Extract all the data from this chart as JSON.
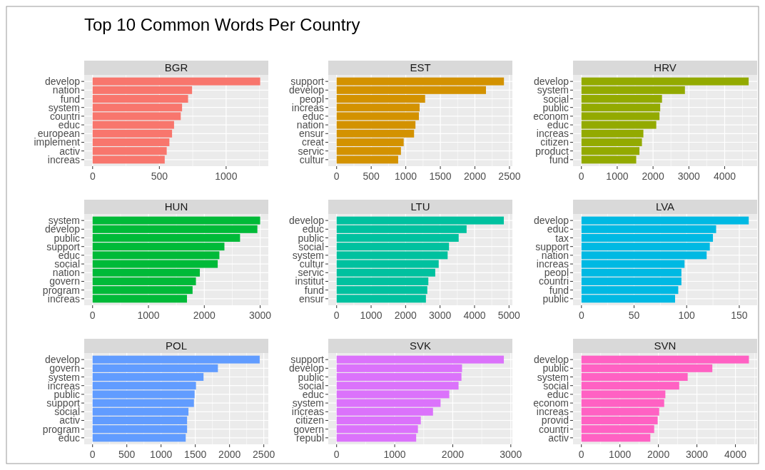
{
  "chart_data": [
    {
      "type": "other",
      "title": "Top 10 Common Words Per Country"
    },
    {
      "type": "bar",
      "orientation": "horizontal",
      "title": "BGR",
      "categories": [
        "develop",
        "nation",
        "fund",
        "system",
        "countri",
        "educ",
        "european",
        "implement",
        "activ",
        "increas"
      ],
      "values": [
        1255,
        745,
        715,
        670,
        660,
        610,
        595,
        575,
        555,
        540
      ],
      "color": "#f8766d",
      "xlim": [
        -63,
        1316
      ],
      "xticks": [
        0,
        500,
        1000
      ],
      "grid": true
    },
    {
      "type": "bar",
      "orientation": "horizontal",
      "title": "EST",
      "categories": [
        "support",
        "develop",
        "peopl",
        "increas",
        "educ",
        "nation",
        "ensur",
        "creat",
        "servic",
        "cultur"
      ],
      "values": [
        2420,
        2160,
        1280,
        1200,
        1190,
        1140,
        1120,
        970,
        930,
        890
      ],
      "color": "#d39200",
      "xlim": [
        -121,
        2542
      ],
      "xticks": [
        0,
        500,
        1000,
        1500,
        2000,
        2500
      ],
      "grid": true
    },
    {
      "type": "bar",
      "orientation": "horizontal",
      "title": "HRV",
      "categories": [
        "develop",
        "system",
        "social",
        "public",
        "econom",
        "educ",
        "increas",
        "citizen",
        "product",
        "fund"
      ],
      "values": [
        4670,
        2890,
        2250,
        2200,
        2180,
        2090,
        1730,
        1690,
        1620,
        1530
      ],
      "color": "#93aa00",
      "xlim": [
        -234,
        4907
      ],
      "xticks": [
        0,
        1000,
        2000,
        3000,
        4000
      ],
      "grid": true
    },
    {
      "type": "bar",
      "orientation": "horizontal",
      "title": "HUN",
      "categories": [
        "system",
        "develop",
        "public",
        "support",
        "educ",
        "social",
        "nation",
        "govern",
        "program",
        "increas"
      ],
      "values": [
        3000,
        2950,
        2640,
        2360,
        2270,
        2240,
        1920,
        1850,
        1790,
        1690
      ],
      "color": "#00ba38",
      "xlim": [
        -150,
        3146
      ],
      "xticks": [
        0,
        1000,
        2000,
        3000
      ],
      "grid": true
    },
    {
      "type": "bar",
      "orientation": "horizontal",
      "title": "LTU",
      "categories": [
        "develop",
        "educ",
        "public",
        "social",
        "system",
        "cultur",
        "servic",
        "institut",
        "fund",
        "ensur"
      ],
      "values": [
        4850,
        3770,
        3540,
        3260,
        3220,
        2960,
        2860,
        2660,
        2630,
        2590
      ],
      "color": "#00c19f",
      "xlim": [
        -243,
        5098
      ],
      "xticks": [
        0,
        1000,
        2000,
        3000,
        4000,
        5000
      ],
      "grid": true
    },
    {
      "type": "bar",
      "orientation": "horizontal",
      "title": "LVA",
      "categories": [
        "develop",
        "educ",
        "tax",
        "support",
        "nation",
        "increas",
        "peopl",
        "countri",
        "fund",
        "public"
      ],
      "values": [
        159,
        128,
        125,
        122,
        119,
        98,
        95,
        95,
        92,
        89
      ],
      "color": "#00b9e3",
      "xlim": [
        -8,
        167
      ],
      "xticks": [
        0,
        50,
        100,
        150
      ],
      "grid": true
    },
    {
      "type": "bar",
      "orientation": "horizontal",
      "title": "POL",
      "categories": [
        "develop",
        "govern",
        "system",
        "increas",
        "public",
        "support",
        "social",
        "activ",
        "program",
        "educ"
      ],
      "values": [
        2440,
        1830,
        1620,
        1510,
        1490,
        1480,
        1400,
        1380,
        1380,
        1360
      ],
      "color": "#619cff",
      "xlim": [
        -122,
        2566
      ],
      "xticks": [
        0,
        500,
        1000,
        1500,
        2000,
        2500
      ],
      "grid": true
    },
    {
      "type": "bar",
      "orientation": "horizontal",
      "title": "SVK",
      "categories": [
        "support",
        "develop",
        "public",
        "social",
        "educ",
        "system",
        "increas",
        "citizen",
        "govern",
        "republ"
      ],
      "values": [
        2880,
        2160,
        2150,
        2100,
        1940,
        1790,
        1660,
        1450,
        1400,
        1370
      ],
      "color": "#db72fb",
      "xlim": [
        -144,
        3027
      ],
      "xticks": [
        0,
        1000,
        2000,
        3000
      ],
      "grid": true
    },
    {
      "type": "bar",
      "orientation": "horizontal",
      "title": "SVN",
      "categories": [
        "develop",
        "public",
        "system",
        "social",
        "educ",
        "econom",
        "increas",
        "provid",
        "countri",
        "activ"
      ],
      "values": [
        4350,
        3400,
        2760,
        2540,
        2180,
        2150,
        2020,
        1980,
        1890,
        1790
      ],
      "color": "#ff61c3",
      "xlim": [
        -217,
        4564
      ],
      "xticks": [
        0,
        1000,
        2000,
        3000,
        4000
      ],
      "grid": true
    }
  ]
}
